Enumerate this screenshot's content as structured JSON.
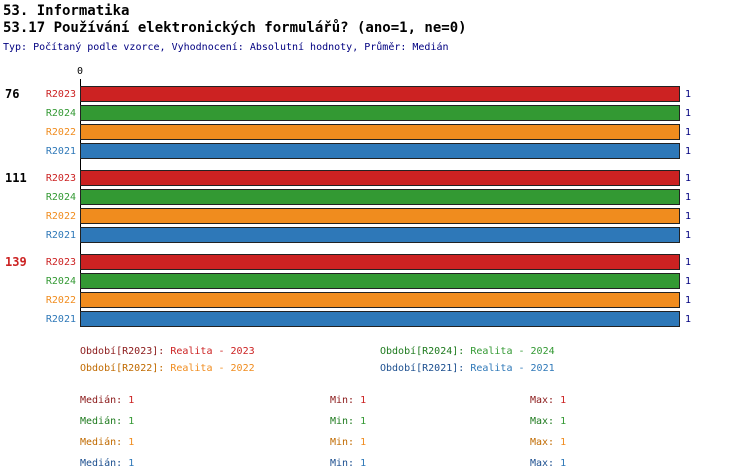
{
  "header": {
    "title_line1": "53. Informatika",
    "title_line2": "53.17 Používání elektronických formulářů? (ano=1, ne=0)",
    "meta_line": "Typ: Počítaný podle vzorce, Vyhodnocení: Absolutní hodnoty, Průměr: Medián"
  },
  "colors": {
    "red": "#CC2222",
    "green": "#339933",
    "orange": "#F08C1E",
    "blue": "#2E78B8",
    "value_label": "#000080",
    "meta_text": "#000080",
    "highlighted_count": "#CC2222"
  },
  "chart_data": {
    "type": "bar",
    "orientation": "horizontal",
    "title": "53.17 Používání elektronických formulářů? (ano=1, ne=0)",
    "axis": {
      "min": 0,
      "max": 1,
      "tick_labels": [
        "0"
      ]
    },
    "series_order": [
      "R2023",
      "R2024",
      "R2022",
      "R2021"
    ],
    "series_colors": {
      "R2023": "#CC2222",
      "R2024": "#339933",
      "R2022": "#F08C1E",
      "R2021": "#2E78B8"
    },
    "groups": [
      {
        "count": "76",
        "bars": [
          {
            "series": "R2023",
            "value": 1
          },
          {
            "series": "R2024",
            "value": 1
          },
          {
            "series": "R2022",
            "value": 1
          },
          {
            "series": "R2021",
            "value": 1
          }
        ]
      },
      {
        "count": "111",
        "bars": [
          {
            "series": "R2023",
            "value": 1
          },
          {
            "series": "R2024",
            "value": 1
          },
          {
            "series": "R2022",
            "value": 1
          },
          {
            "series": "R2021",
            "value": 1
          }
        ]
      },
      {
        "count": "139",
        "count_highlighted": true,
        "bars": [
          {
            "series": "R2023",
            "value": 1
          },
          {
            "series": "R2024",
            "value": 1
          },
          {
            "series": "R2022",
            "value": 1
          },
          {
            "series": "R2021",
            "value": 1
          }
        ]
      }
    ],
    "legend": [
      {
        "label": "Období[R2023]:",
        "value": "Realita - 2023"
      },
      {
        "label": "Období[R2024]:",
        "value": "Realita - 2024"
      },
      {
        "label": "Období[R2022]:",
        "value": "Realita - 2022"
      },
      {
        "label": "Období[R2021]:",
        "value": "Realita - 2021"
      }
    ],
    "stats": [
      {
        "series": "R2023",
        "median_label": "Medián:",
        "median": 1,
        "min_label": "Min:",
        "min": 1,
        "max_label": "Max:",
        "max": 1
      },
      {
        "series": "R2024",
        "median_label": "Medián:",
        "median": 1,
        "min_label": "Min:",
        "min": 1,
        "max_label": "Max:",
        "max": 1
      },
      {
        "series": "R2022",
        "median_label": "Medián:",
        "median": 1,
        "min_label": "Min:",
        "min": 1,
        "max_label": "Max:",
        "max": 1
      },
      {
        "series": "R2021",
        "median_label": "Medián:",
        "median": 1,
        "min_label": "Min:",
        "min": 1,
        "max_label": "Max:",
        "max": 1
      }
    ]
  }
}
